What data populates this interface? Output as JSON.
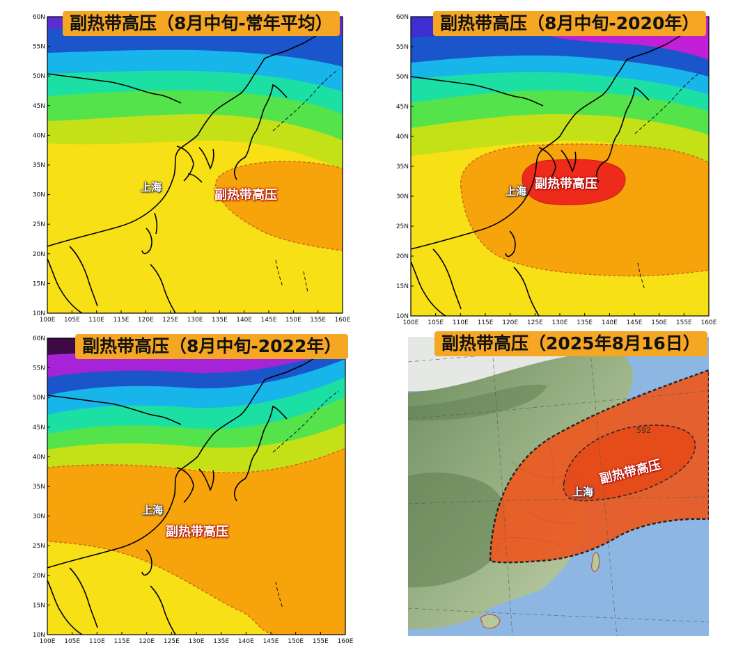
{
  "panels": [
    {
      "title": "副热带高压（8月中旬-常年平均）",
      "city_label": "上海",
      "high_label": "副热带高压"
    },
    {
      "title": "副热带高压（8月中旬-2020年）",
      "city_label": "上海",
      "high_label": "副热带高压"
    },
    {
      "title": "副热带高压（8月中旬-2022年）",
      "city_label": "上海",
      "high_label": "副热带高压"
    },
    {
      "title": "副热带高压（2025年8月16日）",
      "city_label": "上海",
      "high_label": "副热带高压",
      "contour_label": "592"
    }
  ],
  "axes": {
    "lat_ticks": [
      "60N",
      "55N",
      "50N",
      "45N",
      "40N",
      "35N",
      "30N",
      "25N",
      "20N",
      "15N",
      "10N"
    ],
    "lon_ticks": [
      "100E",
      "105E",
      "110E",
      "115E",
      "120E",
      "125E",
      "130E",
      "135E",
      "140E",
      "145E",
      "150E",
      "155E",
      "160E"
    ]
  },
  "colors": {
    "high_core": "#ee2b1b",
    "high_zone": "#f7a30b",
    "yellow": "#f7e015",
    "green_yellow": "#c4e017",
    "lime": "#54e34b",
    "cyan_green": "#1ce0a3",
    "cyan": "#17b5ea",
    "blue": "#1a55cc",
    "purple": "#a723d8",
    "magenta": "#c21fd6",
    "dark_purple": "#3d0a44",
    "title_bg": "#f5a623",
    "sea": "#8db6e3",
    "relief_green": "#7a9a6a",
    "high_2025": "#ec5a22"
  }
}
